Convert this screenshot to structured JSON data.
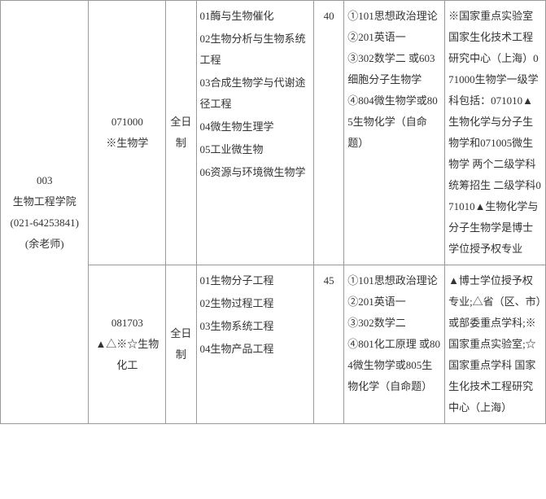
{
  "dept": {
    "code": "003",
    "name": "生物工程学院",
    "phone": "(021-64253841)",
    "contact": "(余老师)"
  },
  "rows": [
    {
      "major_code": "071000",
      "major_name": "※生物学",
      "mode": "全日制",
      "directions": [
        "01酶与生物催化",
        "02生物分析与生物系统工程",
        "03合成生物学与代谢途径工程",
        "04微生物生理学",
        "05工业微生物",
        "06资源与环境微生物学"
      ],
      "quota": "40",
      "exams": "①101思想政治理论\n②201英语一\n③302数学二 或603细胞分子生物学\n④804微生物学或805生物化学（自命题）",
      "note": "※国家重点实验室 国家生化技术工程研究中心（上海）071000生物学一级学科包括：071010▲生物化学与分子生物学和071005微生物学 两个二级学科统筹招生 二级学科071010▲生物化学与分子生物学是博士学位授予权专业"
    },
    {
      "major_code": "081703",
      "major_name": "▲△※☆生物化工",
      "mode": "全日制",
      "directions": [
        "01生物分子工程",
        "02生物过程工程",
        "03生物系统工程",
        "04生物产品工程"
      ],
      "quota": "45",
      "exams": "①101思想政治理论\n②201英语一\n③302数学二\n④801化工原理 或804微生物学或805生物化学（自命题）",
      "note": "▲博士学位授予权专业;△省（区、市）或部委重点学科;※国家重点实验室;☆国家重点学科 国家生化技术工程研究中心（上海）"
    }
  ]
}
